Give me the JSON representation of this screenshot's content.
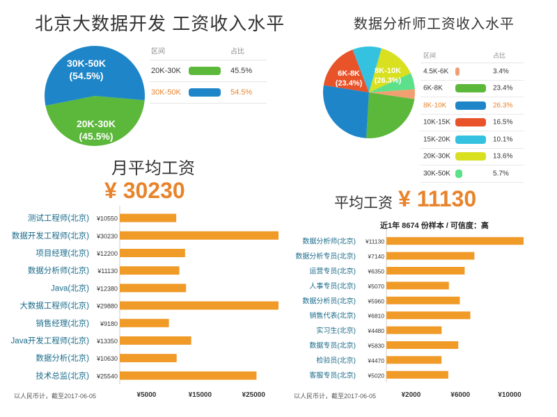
{
  "left": {
    "title": "北京大数据开发 工资收入水平",
    "pie_labels": [
      {
        "range": "30K-50K",
        "pct": "(54.5%)"
      },
      {
        "range": "20K-30K",
        "pct": "(45.5%)"
      }
    ],
    "legend": {
      "col1": "区间",
      "col2": "占比",
      "rows": [
        {
          "label": "20K-30K",
          "pct": "45.5%",
          "color": "#5cb83b"
        },
        {
          "label": "30K-50K",
          "pct": "54.5%",
          "color": "#1e86c8"
        }
      ]
    },
    "avg_label": "月平均工资",
    "avg_value": "¥ 30230",
    "footnote": "以人民币计，截至2017-06-05"
  },
  "right": {
    "title": "数据分析师工资收入水平",
    "pie_labels": [
      {
        "range": "6K-8K",
        "pct": "(23.4%)"
      },
      {
        "range": "8K-10K",
        "pct": "(26.3%)"
      }
    ],
    "legend": {
      "col1": "区间",
      "col2": "占比",
      "rows": [
        {
          "label": "4.5K-6K",
          "pct": "3.4%",
          "color": "#f0a070"
        },
        {
          "label": "6K-8K",
          "pct": "23.4%",
          "color": "#5cb83b"
        },
        {
          "label": "8K-10K",
          "pct": "26.3%",
          "color": "#1e86c8"
        },
        {
          "label": "10K-15K",
          "pct": "16.5%",
          "color": "#e8532a"
        },
        {
          "label": "15K-20K",
          "pct": "10.1%",
          "color": "#35c2e0"
        },
        {
          "label": "20K-30K",
          "pct": "13.6%",
          "color": "#d8e020"
        },
        {
          "label": "30K-50K",
          "pct": "5.7%",
          "color": "#5ce08a"
        }
      ]
    },
    "avg_label": "平均工资",
    "avg_value": "¥ 11130",
    "sample_note": "近1年 8674 份样本 / 可信度：高",
    "footnote": "以人民币计，截至2017-06-05"
  },
  "chart_data": [
    {
      "type": "pie",
      "title": "北京大数据开发 工资收入水平",
      "categories": [
        "20K-30K",
        "30K-50K"
      ],
      "values": [
        45.5,
        54.5
      ]
    },
    {
      "type": "pie",
      "title": "数据分析师工资收入水平",
      "categories": [
        "4.5K-6K",
        "6K-8K",
        "8K-10K",
        "10K-15K",
        "15K-20K",
        "20K-30K",
        "30K-50K"
      ],
      "values": [
        3.4,
        23.4,
        26.3,
        16.5,
        10.1,
        13.6,
        5.7
      ]
    },
    {
      "type": "bar",
      "orientation": "horizontal",
      "color": "#f09a28",
      "categories": [
        "测试工程师(北京)",
        "数据开发工程师(北京)",
        "项目经理(北京)",
        "数据分析师(北京)",
        "Java(北京)",
        "大数据工程师(北京)",
        "销售经理(北京)",
        "Java开发工程师(北京)",
        "数据分析(北京)",
        "技术总监(北京)"
      ],
      "value_labels": [
        "¥10550",
        "¥30230",
        "¥12200",
        "¥11130",
        "¥12380",
        "¥29880",
        "¥9180",
        "¥13350",
        "¥10630",
        "¥25540"
      ],
      "values": [
        10550,
        30230,
        12200,
        11130,
        12380,
        29880,
        9180,
        13350,
        10630,
        25540
      ],
      "xlim": [
        0,
        29000
      ],
      "xticks": [
        5000,
        15000,
        25000
      ],
      "xtick_labels": [
        "¥5000",
        "¥15000",
        "¥25000"
      ]
    },
    {
      "type": "bar",
      "orientation": "horizontal",
      "color": "#f09a28",
      "categories": [
        "数据分析师(北京)",
        "数据分析专员(北京)",
        "运营专员(北京)",
        "人事专员(北京)",
        "数据分析员(北京)",
        "销售代表(北京)",
        "实习生(北京)",
        "数据专员(北京)",
        "检验员(北京)",
        "客服专员(北京)"
      ],
      "value_labels": [
        "¥11130",
        "¥7140",
        "¥6350",
        "¥5070",
        "¥5960",
        "¥6810",
        "¥4480",
        "¥5830",
        "¥4470",
        "¥5020"
      ],
      "values": [
        11130,
        7140,
        6350,
        5070,
        5960,
        6810,
        4480,
        5830,
        4470,
        5020
      ],
      "xlim": [
        0,
        11300
      ],
      "xticks": [
        2000,
        6000,
        10000
      ],
      "xtick_labels": [
        "¥2000",
        "¥6000",
        "¥10000"
      ]
    }
  ]
}
